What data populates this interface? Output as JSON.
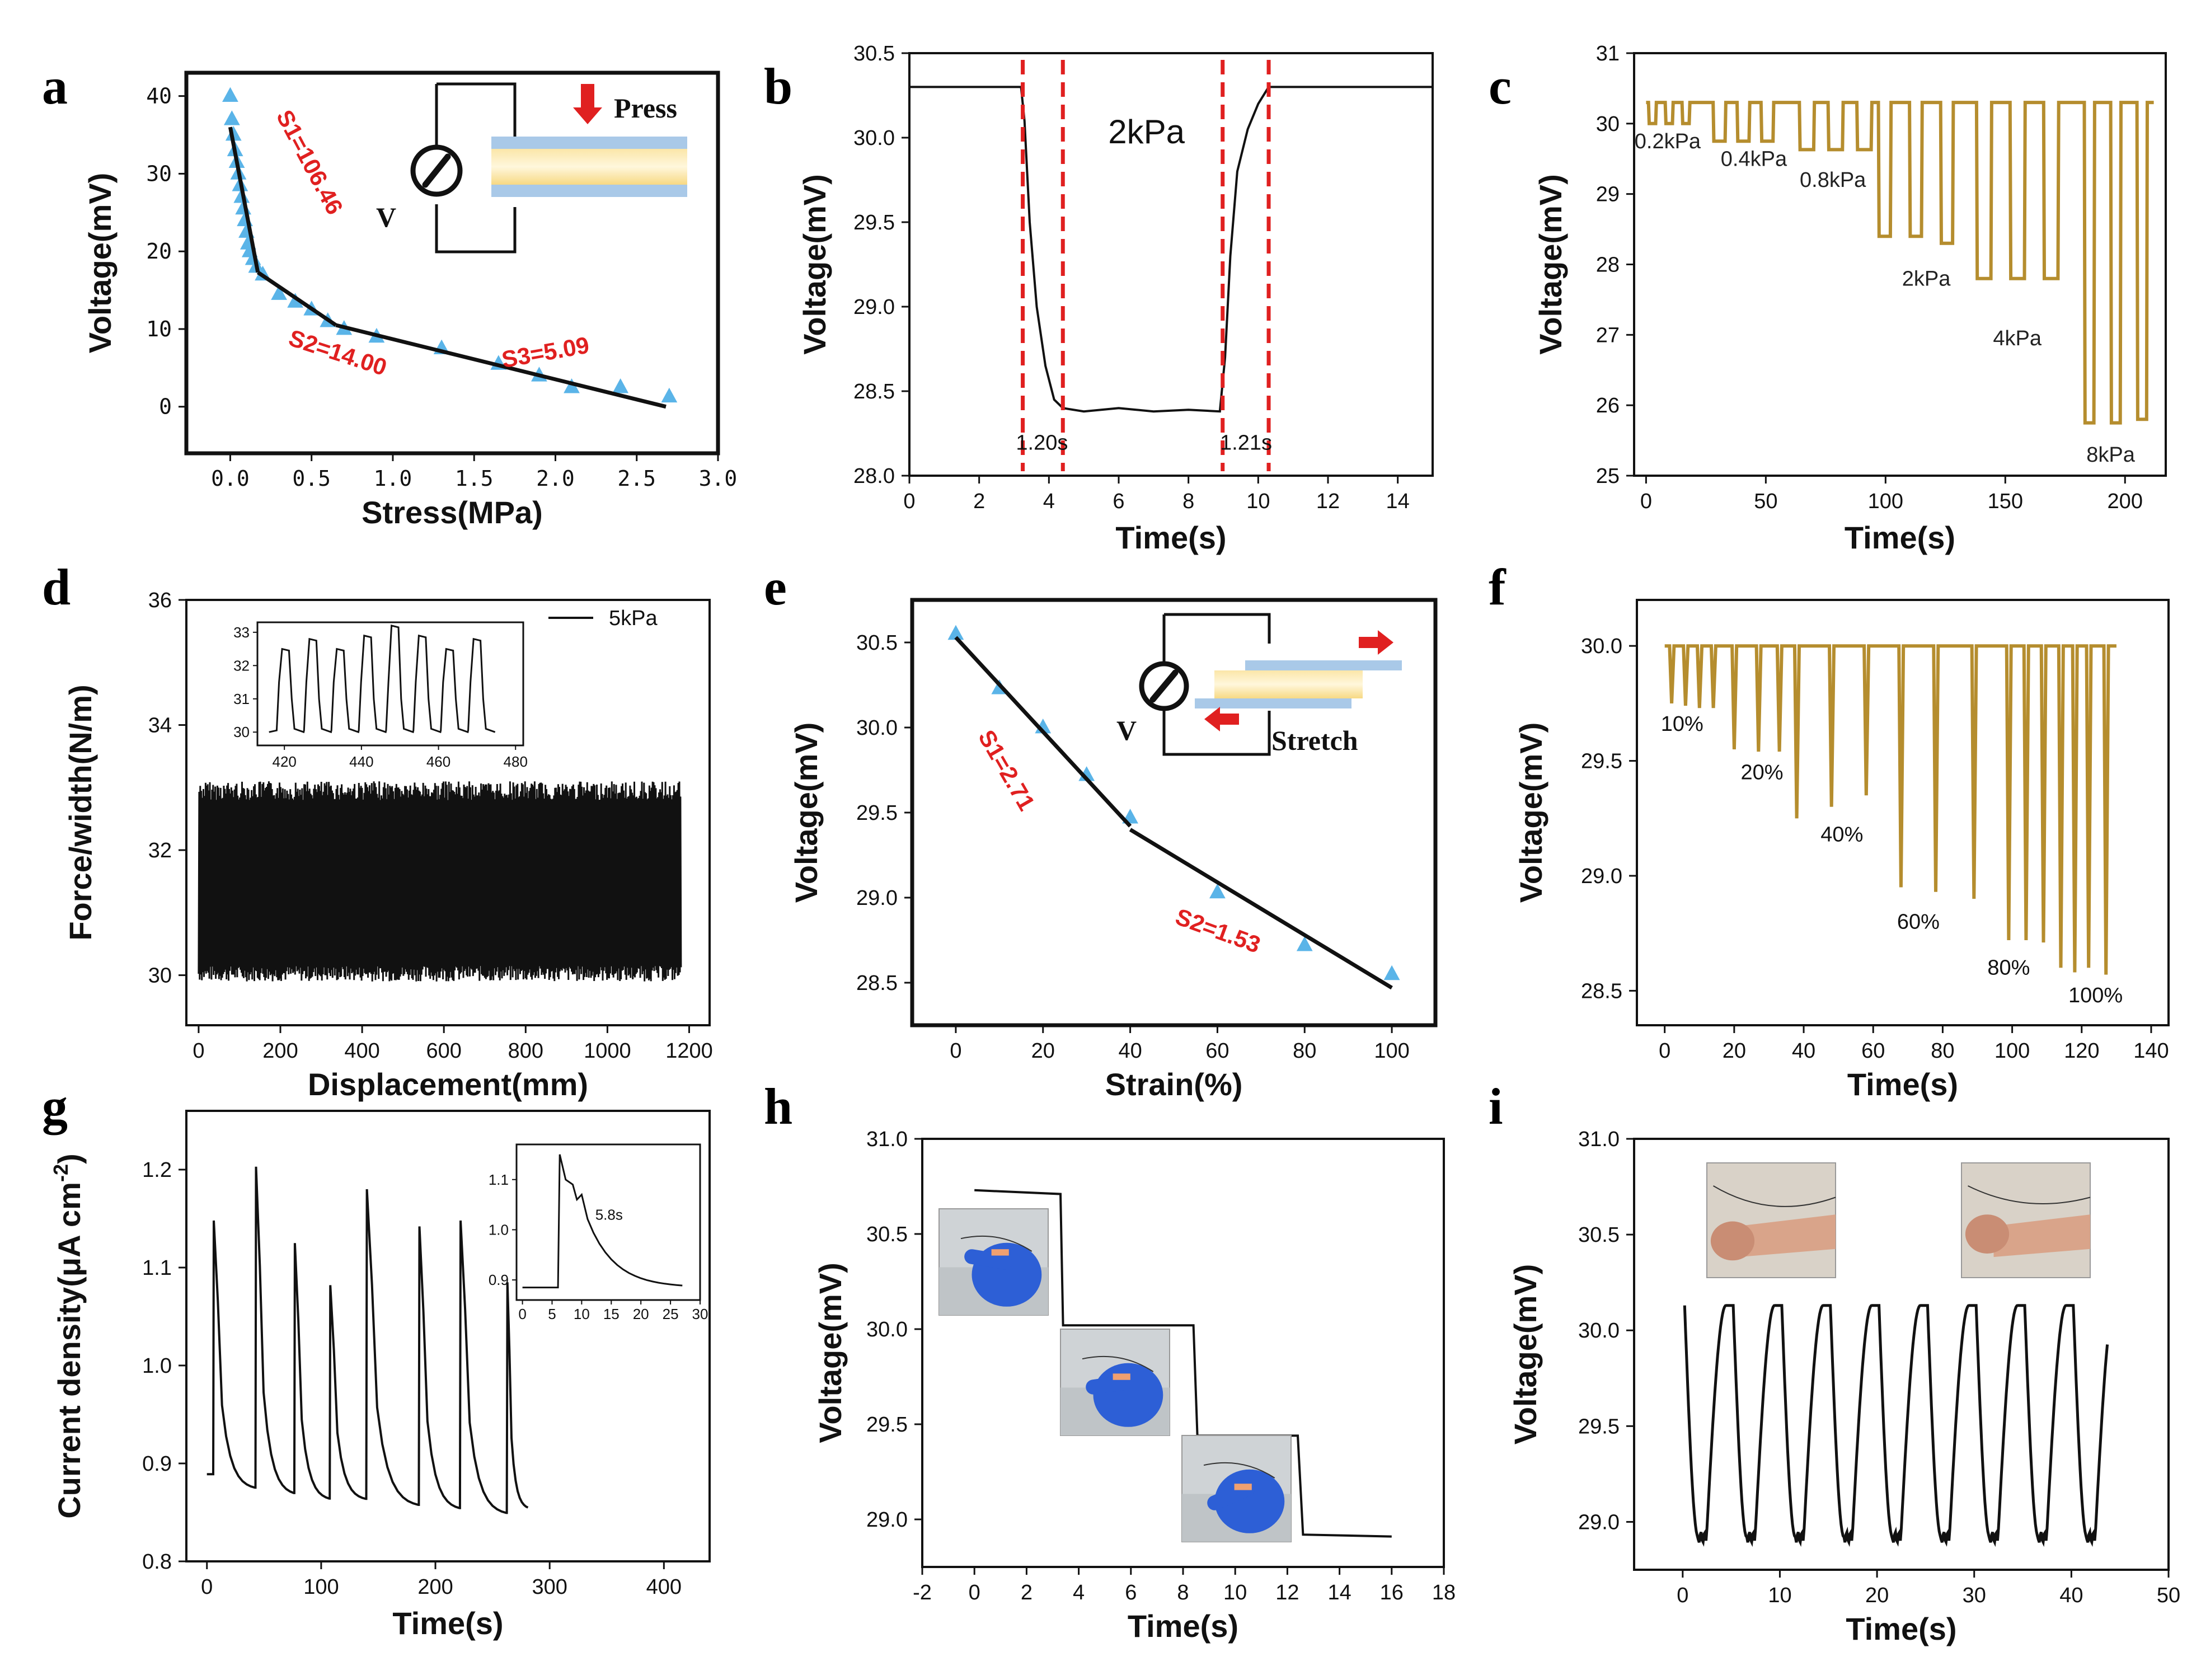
{
  "colors": {
    "marker_blue": "#5ab4e8",
    "gold": "#b58d2e",
    "red": "#e02020",
    "black": "#111111",
    "glove": "#2d5fd6"
  },
  "chart_data": [
    {
      "id": "a",
      "type": "scatter",
      "letter": "a",
      "xlabel": "Stress(MPa)",
      "ylabel": "Voltage(mV)",
      "xlim": [
        -0.27,
        3.0
      ],
      "ylim": [
        -6,
        43
      ],
      "xticks": [
        "0.0",
        "0.5",
        "1.0",
        "1.5",
        "2.0",
        "2.5",
        "3.0"
      ],
      "xtick_values": [
        0,
        0.5,
        1.0,
        1.5,
        2.0,
        2.5,
        3.0
      ],
      "yticks": [
        "0",
        "10",
        "20",
        "30",
        "40"
      ],
      "ytick_values": [
        0,
        10,
        20,
        30,
        40
      ],
      "points": [
        [
          0,
          40
        ],
        [
          0.01,
          37
        ],
        [
          0.02,
          35
        ],
        [
          0.03,
          33
        ],
        [
          0.04,
          31.5
        ],
        [
          0.05,
          30
        ],
        [
          0.06,
          28.5
        ],
        [
          0.07,
          27
        ],
        [
          0.08,
          25.5
        ],
        [
          0.09,
          24
        ],
        [
          0.1,
          22.5
        ],
        [
          0.11,
          21
        ],
        [
          0.12,
          20
        ],
        [
          0.14,
          19
        ],
        [
          0.16,
          18
        ],
        [
          0.2,
          17
        ],
        [
          0.3,
          14.5
        ],
        [
          0.4,
          13.5
        ],
        [
          0.5,
          12.5
        ],
        [
          0.6,
          11
        ],
        [
          0.7,
          10
        ],
        [
          0.9,
          9
        ],
        [
          1.3,
          7.5
        ],
        [
          1.65,
          5.5
        ],
        [
          1.9,
          4
        ],
        [
          2.1,
          2.5
        ],
        [
          2.4,
          2.5
        ],
        [
          2.7,
          1.3
        ]
      ],
      "fit_lines": [
        [
          [
            0,
            36
          ],
          [
            0.17,
            17.3
          ]
        ],
        [
          [
            0.17,
            17.3
          ],
          [
            0.65,
            10.5
          ]
        ],
        [
          [
            0.65,
            10.5
          ],
          [
            2.68,
            0
          ]
        ]
      ],
      "annotations": {
        "s1": "S1=106.46",
        "s2": "S2=14.00",
        "s3": "S3=5.09"
      },
      "inset": {
        "press": "Press",
        "v": "V"
      }
    },
    {
      "id": "b",
      "type": "line",
      "letter": "b",
      "xlabel": "Time(s)",
      "ylabel": "Voltage(mV)",
      "xlim": [
        0,
        15
      ],
      "ylim": [
        28.0,
        30.5
      ],
      "xticks": [
        "0",
        "2",
        "4",
        "6",
        "8",
        "10",
        "12",
        "14"
      ],
      "xtick_values": [
        0,
        2,
        4,
        6,
        8,
        10,
        12,
        14
      ],
      "yticks": [
        "28.0",
        "28.5",
        "29.0",
        "29.5",
        "30.0",
        "30.5"
      ],
      "ytick_values": [
        28.0,
        28.5,
        29.0,
        29.5,
        30.0,
        30.5
      ],
      "series": [
        {
          "name": "2kPa",
          "points": [
            [
              0,
              30.3
            ],
            [
              3.2,
              30.3
            ],
            [
              3.3,
              30.1
            ],
            [
              3.45,
              29.5
            ],
            [
              3.65,
              29.0
            ],
            [
              3.9,
              28.65
            ],
            [
              4.15,
              28.45
            ],
            [
              4.4,
              28.4
            ],
            [
              5,
              28.38
            ],
            [
              6,
              28.4
            ],
            [
              7,
              28.38
            ],
            [
              8,
              28.39
            ],
            [
              8.9,
              28.38
            ],
            [
              9.05,
              28.7
            ],
            [
              9.2,
              29.3
            ],
            [
              9.4,
              29.8
            ],
            [
              9.7,
              30.05
            ],
            [
              10.0,
              30.2
            ],
            [
              10.3,
              30.3
            ],
            [
              15,
              30.3
            ]
          ]
        }
      ],
      "vlines": [
        3.25,
        4.4,
        8.98,
        10.3
      ],
      "annotations": {
        "label": "2kPa",
        "t1": "1.20s",
        "t2": "1.21s"
      }
    },
    {
      "id": "c",
      "type": "line",
      "letter": "c",
      "xlabel": "Time(s)",
      "ylabel": "Voltage(mV)",
      "xlim": [
        -5,
        217
      ],
      "ylim": [
        25,
        31
      ],
      "xticks": [
        "0",
        "50",
        "100",
        "150",
        "200"
      ],
      "xtick_values": [
        0,
        50,
        100,
        150,
        200
      ],
      "yticks": [
        "25",
        "26",
        "27",
        "28",
        "29",
        "30",
        "31"
      ],
      "ytick_values": [
        25,
        26,
        27,
        28,
        29,
        30,
        31
      ],
      "base": 30.3,
      "pulses": [
        {
          "start": 1,
          "width": 3,
          "level": 30.0
        },
        {
          "start": 8,
          "width": 3,
          "level": 30.0
        },
        {
          "start": 15,
          "width": 3,
          "level": 30.0
        },
        {
          "start": 28,
          "width": 5,
          "level": 29.75
        },
        {
          "start": 38,
          "width": 5,
          "level": 29.75
        },
        {
          "start": 48,
          "width": 5,
          "level": 29.75
        },
        {
          "start": 64,
          "width": 6,
          "level": 29.63
        },
        {
          "start": 76,
          "width": 6,
          "level": 29.63
        },
        {
          "start": 88,
          "width": 6,
          "level": 29.63
        },
        {
          "start": 97,
          "width": 5,
          "level": 28.4
        },
        {
          "start": 110,
          "width": 5,
          "level": 28.4
        },
        {
          "start": 123,
          "width": 5,
          "level": 28.3
        },
        {
          "start": 138,
          "width": 6,
          "level": 27.8
        },
        {
          "start": 152,
          "width": 6,
          "level": 27.8
        },
        {
          "start": 166,
          "width": 6,
          "level": 27.8
        },
        {
          "start": 183,
          "width": 4,
          "level": 25.75
        },
        {
          "start": 194,
          "width": 4,
          "level": 25.75
        },
        {
          "start": 205,
          "width": 4,
          "level": 25.8
        }
      ],
      "end_time": 212,
      "labels": [
        {
          "text": "0.2kPa",
          "x": 9,
          "y": 29.65
        },
        {
          "text": "0.4kPa",
          "x": 45,
          "y": 29.4
        },
        {
          "text": "0.8kPa",
          "x": 78,
          "y": 29.1
        },
        {
          "text": "2kPa",
          "x": 117,
          "y": 27.7
        },
        {
          "text": "4kPa",
          "x": 155,
          "y": 26.85
        },
        {
          "text": "8kPa",
          "x": 194,
          "y": 25.2
        }
      ]
    },
    {
      "id": "d",
      "type": "line",
      "letter": "d",
      "xlabel": "Displacement(mm)",
      "ylabel": "Force/width(N/m)",
      "xlim": [
        -30,
        1250
      ],
      "ylim": [
        29.2,
        36
      ],
      "xticks": [
        "0",
        "200",
        "400",
        "600",
        "800",
        "1000",
        "1200"
      ],
      "xtick_values": [
        0,
        200,
        400,
        600,
        800,
        1000,
        1200
      ],
      "yticks": [
        "30",
        "32",
        "34",
        "36"
      ],
      "ytick_values": [
        30,
        32,
        34,
        36
      ],
      "band": {
        "x0": 0,
        "x1": 1180,
        "low": 30.0,
        "high": 33.0
      },
      "legend": "5kPa",
      "inset": {
        "xticks": [
          "420",
          "440",
          "460",
          "480"
        ],
        "xtick_values": [
          420,
          440,
          460,
          480
        ],
        "yticks": [
          "30",
          "31",
          "32",
          "33"
        ],
        "ytick_values": [
          30,
          31,
          32,
          33
        ],
        "xlim": [
          413,
          482
        ],
        "ylim": [
          29.6,
          33.3
        ],
        "cycles": 8
      }
    },
    {
      "id": "e",
      "type": "scatter",
      "letter": "e",
      "xlabel": "Strain(%)",
      "ylabel": "Voltage(mV)",
      "xlim": [
        -10,
        110
      ],
      "ylim": [
        28.25,
        30.75
      ],
      "xticks": [
        "0",
        "20",
        "40",
        "60",
        "80",
        "100"
      ],
      "xtick_values": [
        0,
        20,
        40,
        60,
        80,
        100
      ],
      "yticks": [
        "28.5",
        "29.0",
        "29.5",
        "30.0",
        "30.5"
      ],
      "ytick_values": [
        28.5,
        29.0,
        29.5,
        30.0,
        30.5
      ],
      "points": [
        [
          0,
          30.55
        ],
        [
          10,
          30.23
        ],
        [
          20,
          30.0
        ],
        [
          30,
          29.72
        ],
        [
          40,
          29.47
        ],
        [
          60,
          29.03
        ],
        [
          80,
          28.72
        ],
        [
          100,
          28.55
        ]
      ],
      "fit_lines": [
        [
          [
            0,
            30.53
          ],
          [
            40,
            29.42
          ]
        ],
        [
          [
            40,
            29.4
          ],
          [
            100,
            28.47
          ]
        ]
      ],
      "annotations": {
        "s1": "S1=2.71",
        "s2": "S2=1.53"
      },
      "inset": {
        "stretch": "Stretch",
        "v": "V"
      }
    },
    {
      "id": "f",
      "type": "line",
      "letter": "f",
      "xlabel": "Time(s)",
      "ylabel": "Voltage(mV)",
      "xlim": [
        -8,
        145
      ],
      "ylim": [
        28.35,
        30.2
      ],
      "xticks": [
        "0",
        "20",
        "40",
        "60",
        "80",
        "100",
        "120",
        "140"
      ],
      "xtick_values": [
        0,
        20,
        40,
        60,
        80,
        100,
        120,
        140
      ],
      "yticks": [
        "28.5",
        "29.0",
        "29.5",
        "30.0"
      ],
      "ytick_values": [
        28.5,
        29.0,
        29.5,
        30.0
      ],
      "base": 30.0,
      "dips": [
        {
          "t": 2,
          "level": 29.75
        },
        {
          "t": 6,
          "level": 29.74
        },
        {
          "t": 10,
          "level": 29.73
        },
        {
          "t": 14,
          "level": 29.73
        },
        {
          "t": 20,
          "level": 29.55
        },
        {
          "t": 27,
          "level": 29.54
        },
        {
          "t": 33,
          "level": 29.54
        },
        {
          "t": 38,
          "level": 29.25
        },
        {
          "t": 48,
          "level": 29.3
        },
        {
          "t": 58,
          "level": 29.35
        },
        {
          "t": 68,
          "level": 28.95
        },
        {
          "t": 78,
          "level": 28.93
        },
        {
          "t": 89,
          "level": 28.9
        },
        {
          "t": 99,
          "level": 28.72
        },
        {
          "t": 104,
          "level": 28.72
        },
        {
          "t": 109,
          "level": 28.71
        },
        {
          "t": 114,
          "level": 28.6
        },
        {
          "t": 118,
          "level": 28.58
        },
        {
          "t": 122,
          "level": 28.6
        },
        {
          "t": 127,
          "level": 28.57
        }
      ],
      "end_time": 130,
      "labels": [
        {
          "text": "10%",
          "x": 5,
          "y": 29.63
        },
        {
          "text": "20%",
          "x": 28,
          "y": 29.42
        },
        {
          "text": "40%",
          "x": 51,
          "y": 29.15
        },
        {
          "text": "60%",
          "x": 73,
          "y": 28.77
        },
        {
          "text": "80%",
          "x": 99,
          "y": 28.57
        },
        {
          "text": "100%",
          "x": 124,
          "y": 28.45
        }
      ]
    },
    {
      "id": "g",
      "type": "line",
      "letter": "g",
      "xlabel": "Time(s)",
      "ylabel": "Current density(μA cm",
      "ylabel_sup": "-2",
      "ylabel_end": ")",
      "xlim": [
        -18,
        440
      ],
      "ylim": [
        0.8,
        1.26
      ],
      "xticks": [
        "0",
        "100",
        "200",
        "300",
        "400"
      ],
      "xtick_values": [
        0,
        100,
        200,
        300,
        400
      ],
      "yticks": [
        "0.8",
        "0.9",
        "1.0",
        "1.1",
        "1.2"
      ],
      "ytick_values": [
        0.8,
        0.9,
        1.0,
        1.1,
        1.2
      ],
      "peaks": [
        {
          "t": 6,
          "peak": 1.148,
          "low": 0.873
        },
        {
          "t": 43,
          "peak": 1.203,
          "low": 0.867
        },
        {
          "t": 77,
          "peak": 1.125,
          "low": 0.862
        },
        {
          "t": 108,
          "peak": 1.082,
          "low": 0.862
        },
        {
          "t": 140,
          "peak": 1.18,
          "low": 0.855
        },
        {
          "t": 186,
          "peak": 1.142,
          "low": 0.852
        },
        {
          "t": 222,
          "peak": 1.148,
          "low": 0.847
        },
        {
          "t": 263,
          "peak": 1.085,
          "low": 0.853
        }
      ],
      "start": [
        0,
        0.889
      ],
      "end_time": 282,
      "inset": {
        "xticks": [
          "0",
          "5",
          "10",
          "15",
          "20",
          "25",
          "30"
        ],
        "xtick_values": [
          0,
          5,
          10,
          15,
          20,
          25,
          30
        ],
        "yticks": [
          "0.9",
          "1.0",
          "1.1"
        ],
        "ytick_values": [
          0.9,
          1.0,
          1.1
        ],
        "xlim": [
          -1,
          30
        ],
        "ylim": [
          0.86,
          1.17
        ],
        "rise_t": 6.3,
        "peak": 1.15,
        "base": 0.885,
        "end_val": 0.885,
        "label": "5.8s"
      }
    },
    {
      "id": "h",
      "type": "line",
      "letter": "h",
      "xlabel": "Time(s)",
      "ylabel": "Voltage(mV)",
      "xlim": [
        -2,
        18
      ],
      "ylim": [
        28.75,
        31.0
      ],
      "xticks": [
        "-2",
        "0",
        "2",
        "4",
        "6",
        "8",
        "10",
        "12",
        "14",
        "16",
        "18"
      ],
      "xtick_values": [
        -2,
        0,
        2,
        4,
        6,
        8,
        10,
        12,
        14,
        16,
        18
      ],
      "yticks": [
        "29.0",
        "29.5",
        "30.0",
        "30.5",
        "31.0"
      ],
      "ytick_values": [
        29.0,
        29.5,
        30.0,
        30.5,
        31.0
      ],
      "steps": [
        [
          0,
          30.73
        ],
        [
          3.3,
          30.71
        ],
        [
          3.4,
          30.02
        ],
        [
          8.4,
          30.02
        ],
        [
          8.55,
          29.44
        ],
        [
          12.4,
          29.44
        ],
        [
          12.6,
          28.92
        ],
        [
          16,
          28.91
        ]
      ]
    },
    {
      "id": "i",
      "type": "line",
      "letter": "i",
      "xlabel": "Time(s)",
      "ylabel": "Voltage(mV)",
      "xlim": [
        -5,
        50
      ],
      "ylim": [
        28.75,
        31.0
      ],
      "xticks": [
        "0",
        "10",
        "20",
        "30",
        "40",
        "50"
      ],
      "xtick_values": [
        0,
        10,
        20,
        30,
        40,
        50
      ],
      "yticks": [
        "29.0",
        "29.5",
        "30.0",
        "30.5",
        "31.0"
      ],
      "ytick_values": [
        29.0,
        29.5,
        30.0,
        30.5,
        31.0
      ],
      "period": 5.0,
      "high": 30.13,
      "low": 28.92,
      "t0": 0.2,
      "t_end": 43.8
    }
  ]
}
